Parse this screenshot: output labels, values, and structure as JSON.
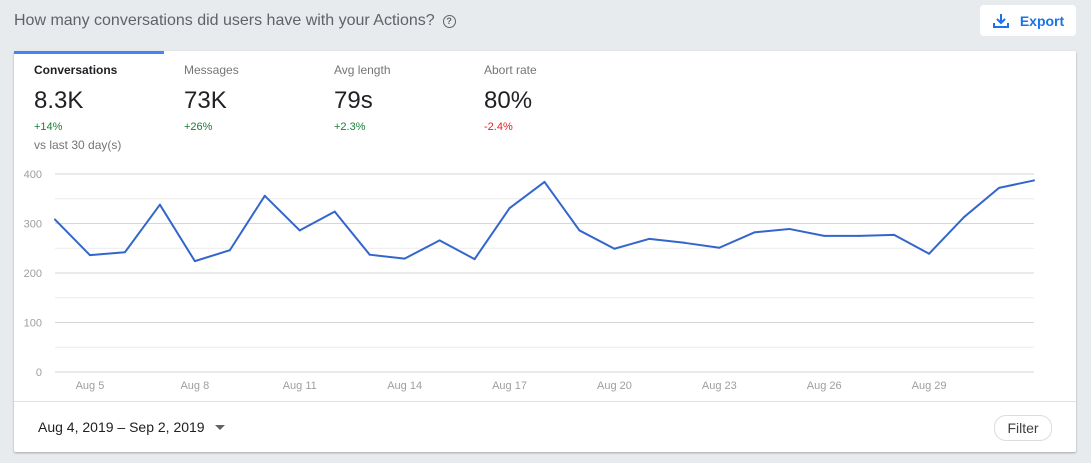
{
  "header": {
    "title": "How many conversations did users have with your Actions?",
    "help_icon": "help-circle-icon",
    "export_label": "Export",
    "export_icon": "download-icon"
  },
  "tabs": [
    {
      "label": "Conversations",
      "value": "8.3K",
      "change": "+14%",
      "trend": "positive",
      "note": "vs last 30 day(s)"
    },
    {
      "label": "Messages",
      "value": "73K",
      "change": "+26%",
      "trend": "positive"
    },
    {
      "label": "Avg length",
      "value": "79s",
      "change": "+2.3%",
      "trend": "positive"
    },
    {
      "label": "Abort rate",
      "value": "80%",
      "change": "-2.4%",
      "trend": "negative"
    }
  ],
  "footer": {
    "date_range": "Aug 4, 2019 – Sep 2, 2019",
    "filter_label": "Filter"
  },
  "colors": {
    "accent": "#4285f4",
    "line": "#3366cc",
    "positive": "#188038",
    "negative": "#ea1b1b"
  },
  "chart_data": {
    "type": "line",
    "ylim": [
      0,
      400
    ],
    "yticks": [
      "0",
      "100",
      "200",
      "300",
      "400"
    ],
    "xtick_labels": [
      "Aug 5",
      "Aug 8",
      "Aug 11",
      "Aug 14",
      "Aug 17",
      "Aug 20",
      "Aug 23",
      "Aug 26",
      "Aug 29"
    ],
    "x": [
      "Aug 4",
      "Aug 5",
      "Aug 6",
      "Aug 7",
      "Aug 8",
      "Aug 9",
      "Aug 10",
      "Aug 11",
      "Aug 12",
      "Aug 13",
      "Aug 14",
      "Aug 15",
      "Aug 16",
      "Aug 17",
      "Aug 18",
      "Aug 19",
      "Aug 20",
      "Aug 21",
      "Aug 22",
      "Aug 23",
      "Aug 24",
      "Aug 25",
      "Aug 26",
      "Aug 27",
      "Aug 28",
      "Aug 29",
      "Aug 30",
      "Aug 31",
      "Sep 1"
    ],
    "series": [
      {
        "values": [
          308,
          236,
          242,
          338,
          224,
          246,
          356,
          286,
          324,
          237,
          229,
          266,
          228,
          331,
          384,
          286,
          249,
          269,
          261,
          251,
          282,
          289,
          275,
          275,
          277,
          239,
          313,
          372,
          387
        ]
      }
    ],
    "grid": true
  }
}
